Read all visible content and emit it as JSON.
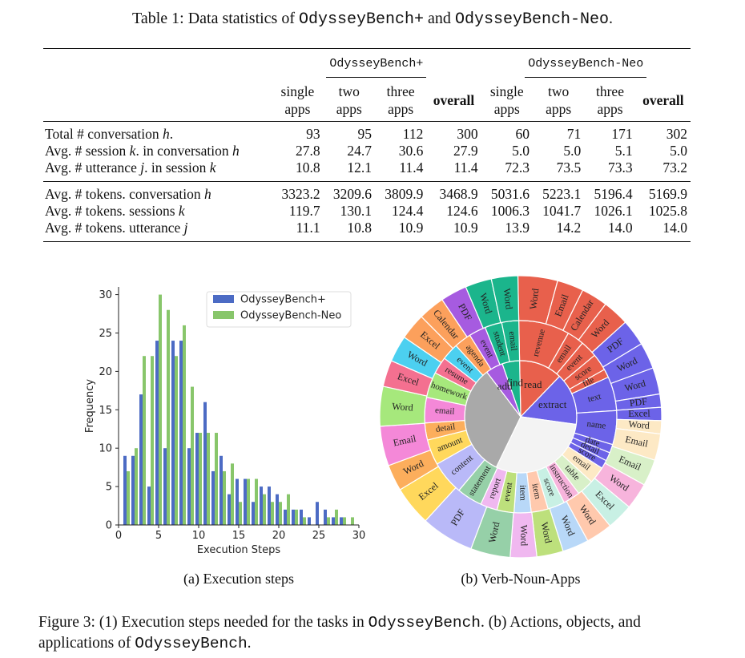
{
  "table": {
    "caption_prefix": "Table 1: Data statistics of ",
    "caption_name1": "OdysseyBench+",
    "caption_mid": " and ",
    "caption_name2": "OdysseyBench-Neo",
    "caption_suffix": ".",
    "group1": "OdysseyBench+",
    "group2": "OdysseyBench-Neo",
    "subheaders": [
      [
        "single",
        "apps"
      ],
      [
        "two",
        "apps"
      ],
      [
        "three",
        "apps"
      ],
      [
        "overall",
        ""
      ],
      [
        "single",
        "apps"
      ],
      [
        "two",
        "apps"
      ],
      [
        "three",
        "apps"
      ],
      [
        "overall",
        ""
      ]
    ],
    "rows": [
      {
        "pre": "Total # conversation ",
        "var": "h",
        "post": ".",
        "values": [
          "93",
          "95",
          "112",
          "300",
          "60",
          "71",
          "171",
          "302"
        ]
      },
      {
        "pre": "Avg. # session ",
        "var": "k",
        "post": ". in conversation ",
        "var2": "h",
        "values": [
          "27.8",
          "24.7",
          "30.6",
          "27.9",
          "5.0",
          "5.0",
          "5.1",
          "5.0"
        ]
      },
      {
        "pre": "Avg. # utterance ",
        "var": "j",
        "post": ". in session ",
        "var2": "k",
        "values": [
          "10.8",
          "12.1",
          "11.4",
          "11.4",
          "72.3",
          "73.5",
          "73.3",
          "73.2"
        ]
      },
      {
        "pre": "Avg. # tokens. conversation ",
        "var": "h",
        "post": "",
        "values": [
          "3323.2",
          "3209.6",
          "3809.9",
          "3468.9",
          "5031.6",
          "5223.1",
          "5196.4",
          "5169.9"
        ]
      },
      {
        "pre": "Avg. # tokens. sessions ",
        "var": "k",
        "post": "",
        "values": [
          "119.7",
          "130.1",
          "124.4",
          "124.6",
          "1006.3",
          "1041.7",
          "1026.1",
          "1025.8"
        ]
      },
      {
        "pre": "Avg. # tokens. utterance ",
        "var": "j",
        "post": "",
        "values": [
          "11.1",
          "10.8",
          "10.9",
          "10.9",
          "13.9",
          "14.2",
          "14.0",
          "14.0"
        ]
      }
    ]
  },
  "chart_data": [
    {
      "type": "bar",
      "xlabel": "Execution Steps",
      "ylabel": "Frequency",
      "xlim": [
        0,
        30
      ],
      "ylim": [
        0,
        31
      ],
      "xticks": [
        "0",
        "5",
        "10",
        "15",
        "20",
        "25",
        "30"
      ],
      "yticks": [
        "0",
        "5",
        "10",
        "15",
        "20",
        "25",
        "30"
      ],
      "legend_position": "top-right",
      "x": [
        1,
        2,
        3,
        4,
        5,
        6,
        7,
        8,
        9,
        10,
        11,
        12,
        13,
        14,
        15,
        16,
        17,
        18,
        19,
        20,
        21,
        22,
        23,
        24,
        25,
        26,
        27,
        28,
        29
      ],
      "series": [
        {
          "name": "OdysseyBench+",
          "color": "#4c6bc4",
          "values": [
            9,
            9,
            17,
            5,
            24,
            10,
            24,
            24,
            10,
            12,
            16,
            7,
            9,
            4,
            6,
            6,
            3,
            5,
            5,
            4,
            2,
            2,
            2,
            1,
            3,
            2,
            1,
            1,
            0
          ]
        },
        {
          "name": "OdysseyBench-Neo",
          "color": "#88c66b",
          "values": [
            7,
            10,
            22,
            22,
            30,
            28,
            22,
            26,
            18,
            12,
            12,
            12,
            7,
            8,
            3,
            6,
            6,
            4,
            3,
            3,
            4,
            2,
            1,
            0,
            0,
            1,
            2,
            1,
            1
          ]
        }
      ]
    },
    {
      "type": "sunburst",
      "levels": [
        "verb",
        "noun",
        "app"
      ],
      "rings": [
        {
          "name": "inner",
          "segments": [
            {
              "label": "read",
              "value": 10,
              "color": "#e8604c"
            },
            {
              "label": "extract",
              "value": 12,
              "color": "#6c63e8"
            },
            {
              "label": "",
              "value": 24,
              "color": "#f3f3f3"
            },
            {
              "label": "",
              "value": 26,
              "color": "#a9a9a9"
            },
            {
              "label": "add",
              "value": 4,
              "color": "#a65be0"
            },
            {
              "label": "find",
              "value": 4,
              "color": "#1bb58c"
            }
          ]
        },
        {
          "name": "middle",
          "segments": [
            {
              "label": "revenue",
              "value": 6,
              "color": "#e8604c"
            },
            {
              "label": "email",
              "value": 2,
              "color": "#e8604c"
            },
            {
              "label": "event",
              "value": 2,
              "color": "#e8604c"
            },
            {
              "label": "score",
              "value": 2,
              "color": "#e8604c"
            },
            {
              "label": "file",
              "value": 1,
              "color": "#e8604c"
            },
            {
              "label": "text",
              "value": 4,
              "color": "#6c63e8"
            },
            {
              "label": "name",
              "value": 4,
              "color": "#6c63e8"
            },
            {
              "label": "date",
              "value": 1,
              "color": "#6c63e8"
            },
            {
              "label": "detail",
              "value": 1,
              "color": "#6c63e8"
            },
            {
              "label": "score",
              "value": 1,
              "color": "#6c63e8"
            },
            {
              "label": "email",
              "value": 2,
              "color": "#fde9c5"
            },
            {
              "label": "table",
              "value": 2,
              "color": "#d8f0c8"
            },
            {
              "label": "instruction",
              "value": 2,
              "color": "#f7b4dc"
            },
            {
              "label": "score",
              "value": 2,
              "color": "#c8f0e4"
            },
            {
              "label": "item",
              "value": 2,
              "color": "#ffc9ad"
            },
            {
              "label": "item",
              "value": 2,
              "color": "#b8d8f8"
            },
            {
              "label": "event",
              "value": 2,
              "color": "#bde07c"
            },
            {
              "label": "report",
              "value": 2,
              "color": "#f0b8f0"
            },
            {
              "label": "statement",
              "value": 3,
              "color": "#96d0a8"
            },
            {
              "label": "content",
              "value": 4,
              "color": "#b9b9f8"
            },
            {
              "label": "amount",
              "value": 3,
              "color": "#ffd85c"
            },
            {
              "label": "detail",
              "value": 2,
              "color": "#fcae5c"
            },
            {
              "label": "email",
              "value": 3,
              "color": "#f488d8"
            },
            {
              "label": "homework",
              "value": 3,
              "color": "#a6e87c"
            },
            {
              "label": "resume",
              "value": 2,
              "color": "#f47090"
            },
            {
              "label": "event",
              "value": 2,
              "color": "#4cd0f0"
            },
            {
              "label": "agenda",
              "value": 2,
              "color": "#fca05c"
            },
            {
              "label": "event",
              "value": 2,
              "color": "#a65be0"
            },
            {
              "label": "student",
              "value": 2,
              "color": "#1bb58c"
            },
            {
              "label": "email",
              "value": 2,
              "color": "#1bb58c"
            }
          ]
        },
        {
          "name": "outer",
          "segments": [
            {
              "label": "Word",
              "value": 3,
              "color": "#e8604c"
            },
            {
              "label": "Email",
              "value": 2,
              "color": "#e8604c"
            },
            {
              "label": "Calendar",
              "value": 2,
              "color": "#e8604c"
            },
            {
              "label": "Word",
              "value": 2,
              "color": "#e8604c"
            },
            {
              "label": "PDF",
              "value": 2,
              "color": "#6c63e8"
            },
            {
              "label": "Word",
              "value": 2,
              "color": "#6c63e8"
            },
            {
              "label": "Word",
              "value": 2,
              "color": "#6c63e8"
            },
            {
              "label": "PDF",
              "value": 1,
              "color": "#6c63e8"
            },
            {
              "label": "Excel",
              "value": 1,
              "color": "#6c63e8"
            },
            {
              "label": "Word",
              "value": 1,
              "color": "#fde9c5"
            },
            {
              "label": "Email",
              "value": 2,
              "color": "#fde9c5"
            },
            {
              "label": "Email",
              "value": 2,
              "color": "#d8f0c8"
            },
            {
              "label": "Word",
              "value": 2,
              "color": "#f7b4dc"
            },
            {
              "label": "Excel",
              "value": 2,
              "color": "#c8f0e4"
            },
            {
              "label": "Word",
              "value": 2,
              "color": "#ffc9ad"
            },
            {
              "label": "Word",
              "value": 2,
              "color": "#b8d8f8"
            },
            {
              "label": "Word",
              "value": 2,
              "color": "#bde07c"
            },
            {
              "label": "Word",
              "value": 2,
              "color": "#f0b8f0"
            },
            {
              "label": "Word",
              "value": 3,
              "color": "#96d0a8"
            },
            {
              "label": "PDF",
              "value": 4,
              "color": "#b9b9f8"
            },
            {
              "label": "Excel",
              "value": 3,
              "color": "#ffd85c"
            },
            {
              "label": "Word",
              "value": 2,
              "color": "#fcae5c"
            },
            {
              "label": "Email",
              "value": 3,
              "color": "#f488d8"
            },
            {
              "label": "Word",
              "value": 3,
              "color": "#a6e87c"
            },
            {
              "label": "Excel",
              "value": 2,
              "color": "#f47090"
            },
            {
              "label": "Word",
              "value": 2,
              "color": "#4cd0f0"
            },
            {
              "label": "Excel",
              "value": 2,
              "color": "#fca05c"
            },
            {
              "label": "Calendar",
              "value": 2,
              "color": "#fca05c"
            },
            {
              "label": "PDF",
              "value": 2,
              "color": "#a65be0"
            },
            {
              "label": "Word",
              "value": 2,
              "color": "#1bb58c"
            },
            {
              "label": "Word",
              "value": 2,
              "color": "#1bb58c"
            }
          ]
        }
      ]
    }
  ],
  "subcaptions": {
    "a": "(a) Execution steps",
    "b": "(b) Verb-Noun-Apps"
  },
  "figure": {
    "p1": "Figure 3: (1) Execution steps needed for the tasks in ",
    "n1": "OdysseyBench",
    "p2": ". (b) Actions, objects, and applications of ",
    "n2": "OdysseyBench",
    "p3": "."
  }
}
